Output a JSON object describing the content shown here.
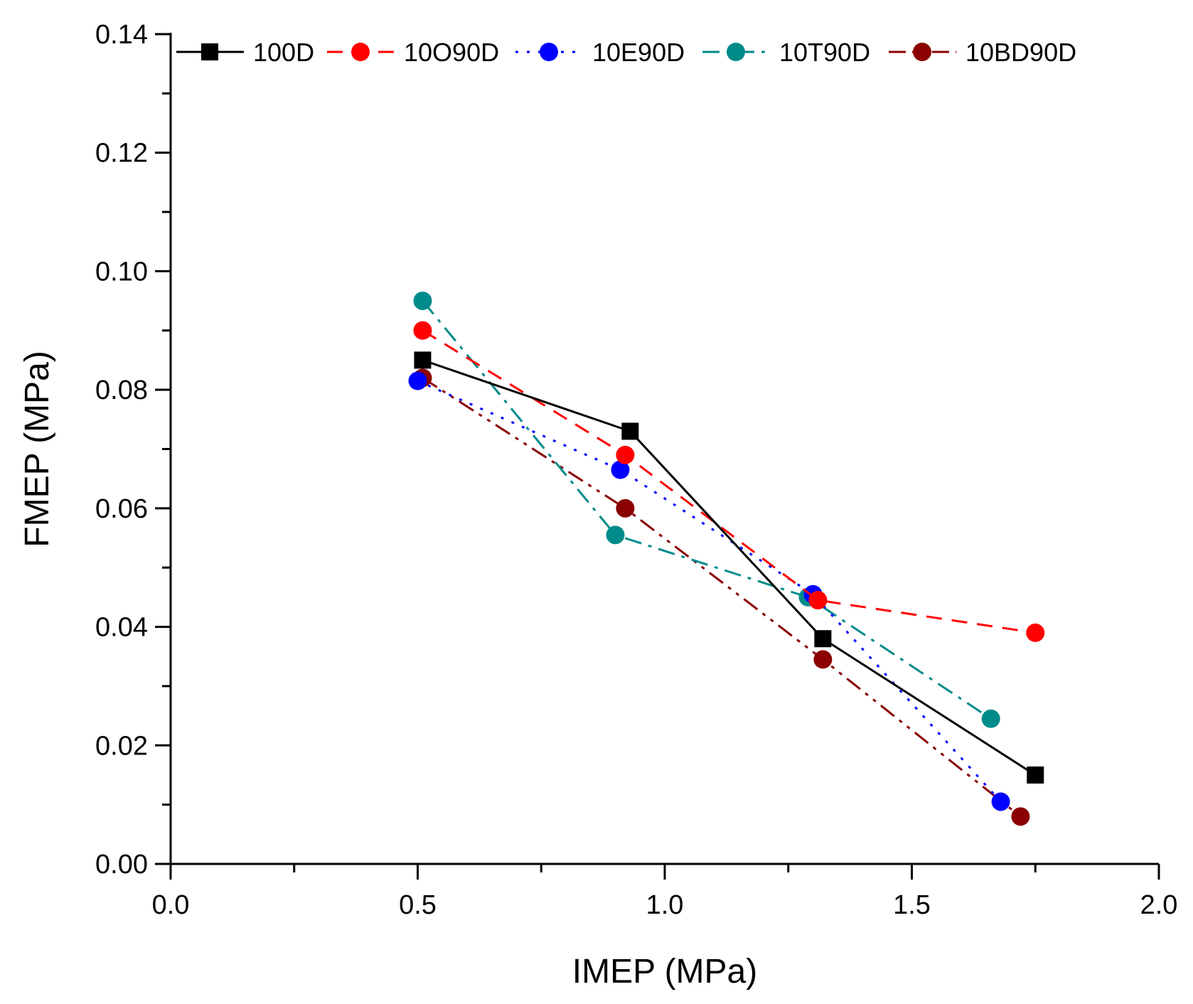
{
  "chart_data": {
    "type": "line",
    "title": "",
    "xlabel": "IMEP (MPa)",
    "ylabel": "FMEP (MPa)",
    "xlim": [
      0.0,
      2.0
    ],
    "ylim": [
      0.0,
      0.14
    ],
    "xticks": [
      "0.0",
      "0.5",
      "1.0",
      "1.5",
      "2.0"
    ],
    "yticks": [
      "0.00",
      "0.02",
      "0.04",
      "0.06",
      "0.08",
      "0.10",
      "0.12",
      "0.14"
    ],
    "xtick_values": [
      0.0,
      0.5,
      1.0,
      1.5,
      2.0
    ],
    "ytick_values": [
      0.0,
      0.02,
      0.04,
      0.06,
      0.08,
      0.1,
      0.12,
      0.14
    ],
    "legend_position": "top",
    "grid": false,
    "series": [
      {
        "name": "100D",
        "color": "#000000",
        "marker": "square",
        "dash": "solid",
        "x": [
          0.51,
          0.93,
          1.32,
          1.75
        ],
        "y": [
          0.085,
          0.073,
          0.038,
          0.015
        ]
      },
      {
        "name": "10O90D",
        "color": "#ff0000",
        "marker": "circle",
        "dash": "dashed",
        "x": [
          0.51,
          0.92,
          1.31,
          1.75
        ],
        "y": [
          0.09,
          0.069,
          0.0445,
          0.039
        ]
      },
      {
        "name": "10E90D",
        "color": "#0000ff",
        "marker": "circle",
        "dash": "dotted",
        "x": [
          0.5,
          0.91,
          1.3,
          1.68
        ],
        "y": [
          0.0815,
          0.0665,
          0.0455,
          0.0105
        ]
      },
      {
        "name": "10T90D",
        "color": "#008b8b",
        "marker": "circle",
        "dash": "dashdot",
        "x": [
          0.51,
          0.9,
          1.29,
          1.66
        ],
        "y": [
          0.095,
          0.0555,
          0.045,
          0.0245
        ]
      },
      {
        "name": "10BD90D",
        "color": "#8b0000",
        "marker": "circle",
        "dash": "dashdotdot",
        "x": [
          0.51,
          0.92,
          1.32,
          1.72
        ],
        "y": [
          0.082,
          0.06,
          0.0345,
          0.008
        ]
      }
    ]
  }
}
